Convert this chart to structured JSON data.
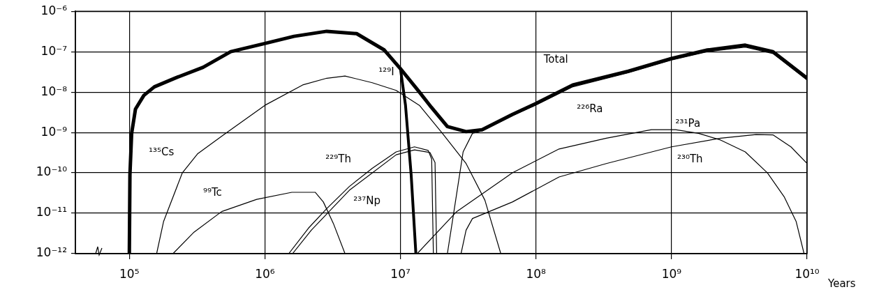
{
  "chart_data": {
    "type": "line",
    "xlabel": "Years",
    "log": "xy",
    "grid": true,
    "legend": false,
    "marker": "none",
    "xlim": [
      40000,
      10000000000
    ],
    "ylim": [
      1e-12,
      1e-06
    ],
    "xticks": [
      {
        "value": 100000,
        "label": "10⁵"
      },
      {
        "value": 1000000,
        "label": "10⁶"
      },
      {
        "value": 10000000,
        "label": "10⁷"
      },
      {
        "value": 100000000,
        "label": "10⁸"
      },
      {
        "value": 1000000000,
        "label": "10⁹"
      },
      {
        "value": 10000000000,
        "label": "10¹⁰"
      }
    ],
    "yticks": [
      {
        "value": 1e-12,
        "label": "10⁻¹²"
      },
      {
        "value": 1e-11,
        "label": "10⁻¹¹"
      },
      {
        "value": 1e-10,
        "label": "10⁻¹⁰"
      },
      {
        "value": 1e-09,
        "label": "10⁻⁹"
      },
      {
        "value": 1e-08,
        "label": "10⁻⁸"
      },
      {
        "value": 1e-07,
        "label": "10⁻⁷"
      },
      {
        "value": 1e-06,
        "label": "10⁻⁶"
      }
    ],
    "series": [
      {
        "name": "Total",
        "color": "#000000",
        "x": [
          100000,
          101000,
          104000,
          111000,
          128000,
          153000,
          219000,
          350000,
          560000,
          1000000,
          1640000,
          2860000,
          4750000,
          7600000,
          10000000,
          13800000,
          16900000,
          22200000,
          30500000,
          40000000,
          67000000,
          100000000,
          187000000,
          480000000,
          1000000000,
          1840000000,
          3500000000,
          5600000000,
          10000000000
        ],
        "values": [
          1e-12,
          8.9e-11,
          9.5e-10,
          3.8e-09,
          8.3e-09,
          1.35e-08,
          2.24e-08,
          4.1e-08,
          1e-07,
          1.6e-07,
          2.4e-07,
          3.2e-07,
          2.8e-07,
          1.1e-07,
          3.8e-08,
          1e-08,
          4.2e-09,
          1.4e-09,
          1.05e-09,
          1.17e-09,
          2.8e-09,
          5.2e-09,
          1.5e-08,
          3.3e-08,
          6.8e-08,
          1.1e-07,
          1.45e-07,
          1e-07,
          2.2e-08
        ]
      },
      {
        "name": "¹²⁹I",
        "color": "#000000",
        "x": [
          10000000,
          10900000,
          12000000,
          13000000
        ],
        "values": [
          3.8e-08,
          4.7e-09,
          8.9e-11,
          1e-12
        ]
      },
      {
        "name": "¹³⁵Cs",
        "color": "#000000",
        "x": [
          159000,
          179000,
          246000,
          320000,
          500000,
          1000000,
          1900000,
          2860000,
          3900000,
          6200000,
          9300000,
          13800000,
          20400000,
          30500000,
          42000000,
          55000000
        ],
        "values": [
          1e-12,
          6.3e-12,
          1e-10,
          3e-10,
          8.9e-10,
          4.7e-09,
          1.5e-08,
          2.2e-08,
          2.5e-08,
          1.7e-08,
          1.1e-08,
          4.7e-09,
          9.5e-10,
          1.7e-10,
          2.1e-11,
          1e-12
        ]
      },
      {
        "name": "⁹⁹Tc",
        "color": "#000000",
        "x": [
          210000,
          300000,
          480000,
          870000,
          1580000,
          2350000,
          2700000,
          3200000,
          3900000
        ],
        "values": [
          1e-12,
          3.4e-12,
          1.1e-11,
          2.2e-11,
          3.3e-11,
          3.3e-11,
          1.9e-11,
          5.6e-12,
          1e-12
        ]
      },
      {
        "name": "²²⁹Th",
        "color": "#000000",
        "x": [
          1500000,
          2100000,
          2860000,
          4200000,
          6200000,
          9300000,
          12700000,
          16000000,
          17000000,
          17500000
        ],
        "values": [
          1e-12,
          4.3e-12,
          1.3e-11,
          4.6e-11,
          1.3e-10,
          3.3e-10,
          4.4e-10,
          3.6e-10,
          2.2e-10,
          1e-12
        ]
      },
      {
        "name": "²³⁷Np",
        "color": "#000000",
        "x": [
          1600000,
          2200000,
          4200000,
          9300000,
          12700000,
          16500000,
          18000000,
          18500000
        ],
        "values": [
          1e-12,
          3.8e-12,
          3.7e-11,
          2.8e-10,
          3.7e-10,
          3.2e-10,
          1.8e-10,
          1e-12
        ]
      },
      {
        "name": "²²⁶Ra",
        "color": "#000000",
        "x": [
          22200000,
          25000000,
          29000000,
          34000000,
          40000000,
          67000000,
          100000000,
          187000000,
          480000000,
          1000000000,
          1840000000,
          3500000000,
          5600000000,
          10000000000
        ],
        "values": [
          1e-12,
          1.3e-11,
          3.3e-10,
          9.5e-10,
          1.1e-09,
          2.6e-09,
          4.8e-09,
          1.35e-08,
          3e-08,
          6.2e-08,
          1e-07,
          1.3e-07,
          9e-08,
          2e-08
        ]
      },
      {
        "name": "²³¹Pa",
        "color": "#000000",
        "x": [
          13300000,
          26000000,
          67000000,
          148000000,
          330000000,
          710000000,
          1070000000,
          1580000000,
          2300000000,
          3500000000,
          5100000000,
          6800000000,
          8300000000,
          9500000000
        ],
        "values": [
          1e-12,
          1.1e-11,
          1e-10,
          3.9e-10,
          7.2e-10,
          1.17e-09,
          1.17e-09,
          9.5e-10,
          6.5e-10,
          3.3e-10,
          1e-10,
          2.5e-11,
          6.3e-12,
          1e-12
        ]
      },
      {
        "name": "²³⁰Th",
        "color": "#000000",
        "x": [
          28000000,
          30500000,
          34000000,
          67000000,
          148000000,
          330000000,
          1000000000,
          2300000000,
          4200000000,
          5600000000,
          7600000000,
          10000000000
        ],
        "values": [
          1e-12,
          3.8e-12,
          7.4e-12,
          1.9e-11,
          7.9e-11,
          1.7e-10,
          4.4e-10,
          7.2e-10,
          8.9e-10,
          8.7e-10,
          4.4e-10,
          1.7e-10
        ]
      }
    ]
  }
}
